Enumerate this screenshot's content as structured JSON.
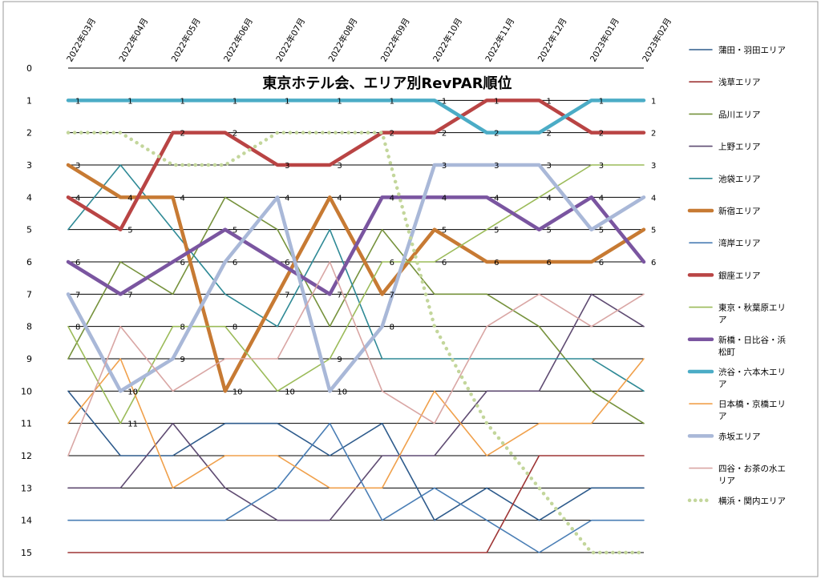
{
  "chart_data": {
    "type": "line",
    "title": "東京ホテル会、エリア別RevPAR順位",
    "xlabel": "",
    "ylabel": "",
    "categories": [
      "2022年03月",
      "2022年04月",
      "2022年05月",
      "2022年06月",
      "2022年07月",
      "2022年08月",
      "2022年09月",
      "2022年10月",
      "2022年11月",
      "2022年12月",
      "2023年01月",
      "2023年02月"
    ],
    "y_ticks": [
      "0",
      "1",
      "2",
      "3",
      "4",
      "5",
      "6",
      "7",
      "8",
      "9",
      "10",
      "11",
      "12",
      "13",
      "14",
      "15"
    ],
    "ylim": [
      0,
      15
    ],
    "y_inverted": true,
    "grid": true,
    "legend_position": "right",
    "series": [
      {
        "name": "蒲田・羽田エリア",
        "color": "#2e5b8c",
        "width": 1.6,
        "dash": false,
        "values": [
          10,
          12,
          12,
          11,
          11,
          12,
          11,
          14,
          13,
          14,
          13,
          13
        ],
        "labels": false
      },
      {
        "name": "浅草エリア",
        "color": "#9e3535",
        "width": 1.6,
        "dash": false,
        "values": [
          15,
          15,
          15,
          15,
          15,
          15,
          15,
          15,
          15,
          12,
          12,
          12
        ],
        "labels": false
      },
      {
        "name": "品川エリア",
        "color": "#76923c",
        "width": 1.6,
        "dash": false,
        "values": [
          9,
          6,
          7,
          4,
          5,
          8,
          5,
          7,
          7,
          8,
          10,
          11
        ],
        "labels": false
      },
      {
        "name": "上野エリア",
        "color": "#5f4b72",
        "width": 1.6,
        "dash": false,
        "values": [
          13,
          13,
          11,
          13,
          14,
          14,
          12,
          12,
          10,
          10,
          7,
          8
        ],
        "labels": false
      },
      {
        "name": "池袋エリア",
        "color": "#2f8a96",
        "width": 1.6,
        "dash": false,
        "values": [
          5,
          3,
          5,
          7,
          8,
          5,
          9,
          9,
          9,
          9,
          9,
          10
        ],
        "labels": false
      },
      {
        "name": "新宿エリア",
        "color": "#c77a33",
        "width": 4.5,
        "dash": false,
        "values": [
          3,
          4,
          4,
          10,
          7,
          4,
          7,
          5,
          6,
          6,
          6,
          5
        ],
        "labels": true
      },
      {
        "name": "湾岸エリア",
        "color": "#4a7eb5",
        "width": 1.6,
        "dash": false,
        "values": [
          14,
          14,
          14,
          14,
          13,
          11,
          14,
          13,
          14,
          15,
          14,
          14
        ],
        "labels": false
      },
      {
        "name": "銀座エリア",
        "color": "#b94444",
        "width": 4.5,
        "dash": false,
        "values": [
          4,
          5,
          2,
          2,
          3,
          3,
          2,
          2,
          1,
          1,
          2,
          2
        ],
        "labels": true
      },
      {
        "name": "東京・秋葉原エリア",
        "color": "#9bbb59",
        "width": 1.6,
        "dash": false,
        "values": [
          8,
          11,
          8,
          8,
          10,
          9,
          6,
          6,
          5,
          4,
          3,
          3
        ],
        "labels": true
      },
      {
        "name": "新橋・日比谷・浜松町",
        "color": "#7a55a0",
        "width": 4.5,
        "dash": false,
        "values": [
          6,
          7,
          6,
          5,
          6,
          7,
          4,
          4,
          4,
          5,
          4,
          6
        ],
        "labels": true
      },
      {
        "name": "渋谷・六本木エリア",
        "color": "#4bacc6",
        "width": 4.5,
        "dash": false,
        "values": [
          1,
          1,
          1,
          1,
          1,
          1,
          1,
          1,
          2,
          2,
          1,
          1
        ],
        "labels": true
      },
      {
        "name": "日本橋・京橋エリア",
        "color": "#f0a04b",
        "width": 1.6,
        "dash": false,
        "values": [
          11,
          9,
          13,
          12,
          12,
          13,
          13,
          10,
          12,
          11,
          11,
          9
        ],
        "labels": false
      },
      {
        "name": "赤坂エリア",
        "color": "#a9b8d8",
        "width": 4.5,
        "dash": false,
        "values": [
          7,
          10,
          9,
          6,
          4,
          10,
          8,
          3,
          3,
          3,
          5,
          4
        ],
        "labels": true
      },
      {
        "name": "四谷・お茶の水エリア",
        "color": "#d9a6a4",
        "width": 1.6,
        "dash": false,
        "values": [
          12,
          8,
          10,
          9,
          9,
          6,
          10,
          11,
          8,
          7,
          8,
          7
        ],
        "labels": false
      },
      {
        "name": "横浜・関内エリア",
        "color": "#c3d69b",
        "width": 4.5,
        "dash": true,
        "values": [
          2,
          2,
          3,
          3,
          2,
          2,
          2,
          8,
          11,
          13,
          15,
          15
        ],
        "labels": false
      }
    ],
    "legend": [
      {
        "text": "蒲田・羽田エリア"
      },
      {
        "text": "浅草エリア"
      },
      {
        "text": "品川エリア"
      },
      {
        "text": "上野エリア"
      },
      {
        "text": "池袋エリア"
      },
      {
        "text": "新宿エリア"
      },
      {
        "text": "湾岸エリア"
      },
      {
        "text": "銀座エリア"
      },
      {
        "text": "東京・秋葉原エリ",
        "text2": "ア"
      },
      {
        "text": "新橋・日比谷・浜",
        "text2": "松町"
      },
      {
        "text": "渋谷・六本木エリ",
        "text2": "ア"
      },
      {
        "text": "日本橋・京橋エリ",
        "text2": "ア"
      },
      {
        "text": "赤坂エリア"
      },
      {
        "text": "四谷・お茶の水エ",
        "text2": "リア"
      },
      {
        "text": "横浜・関内エリア"
      }
    ]
  }
}
